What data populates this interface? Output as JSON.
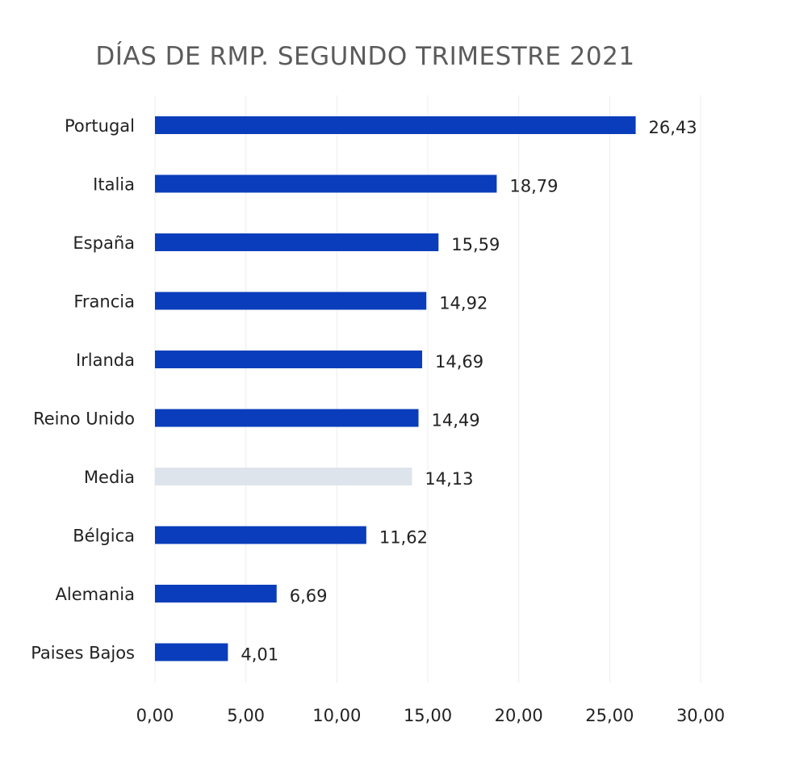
{
  "chart_data": {
    "type": "bar",
    "orientation": "horizontal",
    "title": "DÍAS DE RMP. SEGUNDO TRIMESTRE 2021",
    "categories": [
      "Portugal",
      "Italia",
      "España",
      "Francia",
      "Irlanda",
      "Reino Unido",
      "Media",
      "Bélgica",
      "Alemania",
      "Paises Bajos"
    ],
    "values": [
      26.43,
      18.79,
      15.59,
      14.92,
      14.69,
      14.49,
      14.13,
      11.62,
      6.69,
      4.01
    ],
    "value_labels": [
      "26,43",
      "18,79",
      "15,59",
      "14,92",
      "14,69",
      "14,49",
      "14,13",
      "11,62",
      "6,69",
      "4,01"
    ],
    "x_ticks": [
      0,
      5,
      10,
      15,
      20,
      25,
      30
    ],
    "x_tick_labels": [
      "0,00",
      "5,00",
      "10,00",
      "15,00",
      "20,00",
      "25,00",
      "30,00"
    ],
    "xlim": [
      0,
      30
    ],
    "grid": true,
    "colors": {
      "bar": "#0a3dbb",
      "highlight_bar": "#dde4ec",
      "highlight_category": "Media",
      "grid": "#ececec"
    }
  }
}
